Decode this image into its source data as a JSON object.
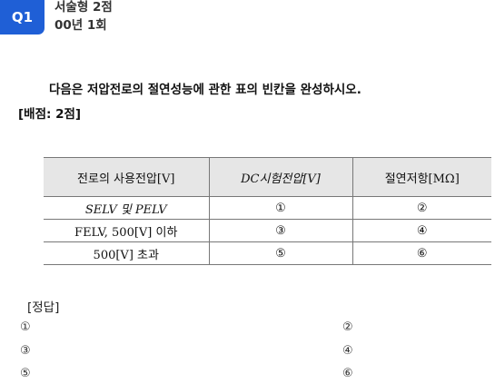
{
  "header": {
    "badge": "Q1",
    "type": "서술형 2점",
    "round": "00년 1회"
  },
  "question": {
    "text": "다음은 저압전로의 절연성능에 관한 표의 빈칸을 완성하시오.",
    "score": "[배점: 2점]"
  },
  "table": {
    "headers": [
      "전로의 사용전압[V]",
      "DC시험전압[V]",
      "절연저항[MΩ]"
    ],
    "rows": [
      [
        "SELV 및 PELV",
        "①",
        "②"
      ],
      [
        "FELV, 500[V] 이하",
        "③",
        "④"
      ],
      [
        "500[V] 초과",
        "⑤",
        "⑥"
      ]
    ]
  },
  "answer": {
    "label": "[정답]",
    "items": [
      "①",
      "②",
      "③",
      "④",
      "⑤",
      "⑥"
    ]
  }
}
